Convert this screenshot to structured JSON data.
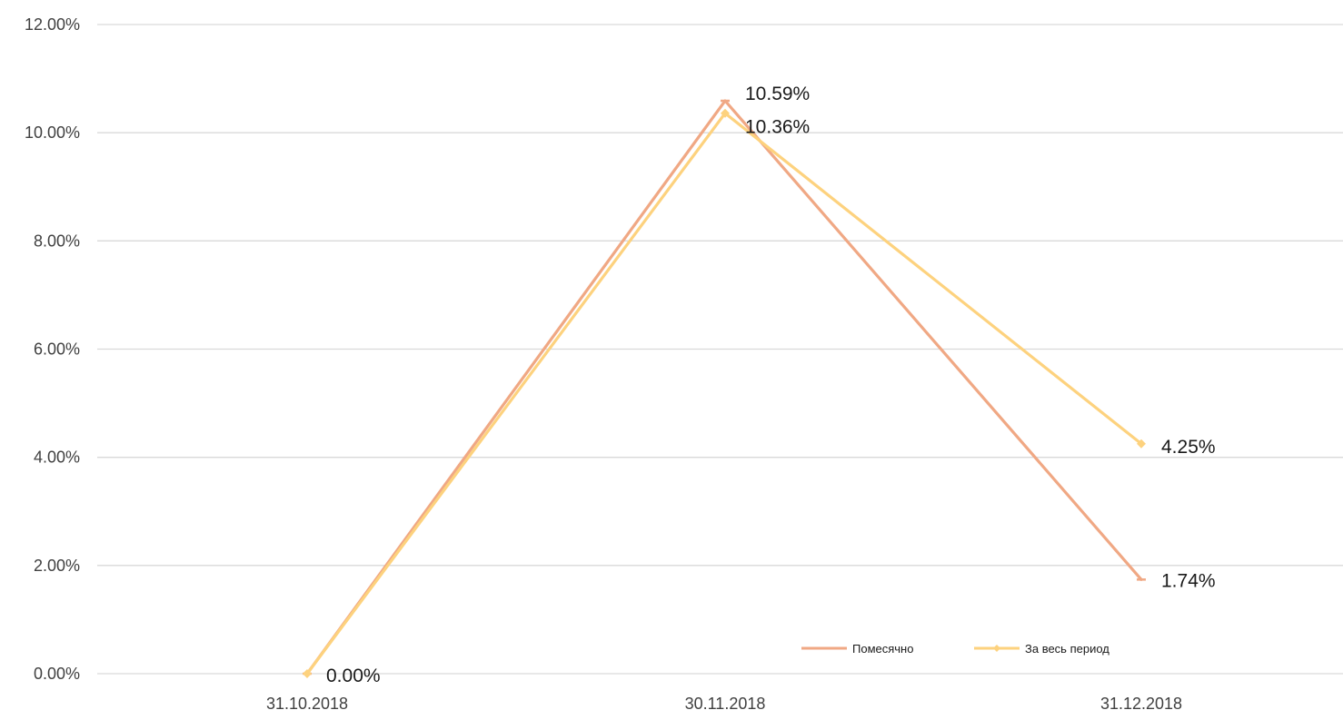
{
  "chart_data": {
    "type": "line",
    "categories": [
      "31.10.2018",
      "30.11.2018",
      "31.12.2018"
    ],
    "series": [
      {
        "name": "Помесячно",
        "values": [
          0.0,
          10.59,
          1.74
        ],
        "labels": [
          "",
          "10.59%",
          "1.74%"
        ],
        "color": "#f0a884",
        "marker": "dash"
      },
      {
        "name": "За весь период",
        "values": [
          0.0,
          10.36,
          4.25
        ],
        "labels": [
          "0.00%",
          "10.36%",
          "4.25%"
        ],
        "color": "#fdd27e",
        "marker": "diamond"
      }
    ],
    "ylim": [
      0,
      12
    ],
    "yticks": [
      {
        "value": 0,
        "label": "0.00%"
      },
      {
        "value": 2,
        "label": "2.00%"
      },
      {
        "value": 4,
        "label": "4.00%"
      },
      {
        "value": 6,
        "label": "6.00%"
      },
      {
        "value": 8,
        "label": "8.00%"
      },
      {
        "value": 10,
        "label": "10.00%"
      },
      {
        "value": 12,
        "label": "12.00%"
      }
    ],
    "grid": true,
    "legend_position": "bottom-right",
    "title": "",
    "xlabel": "",
    "ylabel": ""
  }
}
